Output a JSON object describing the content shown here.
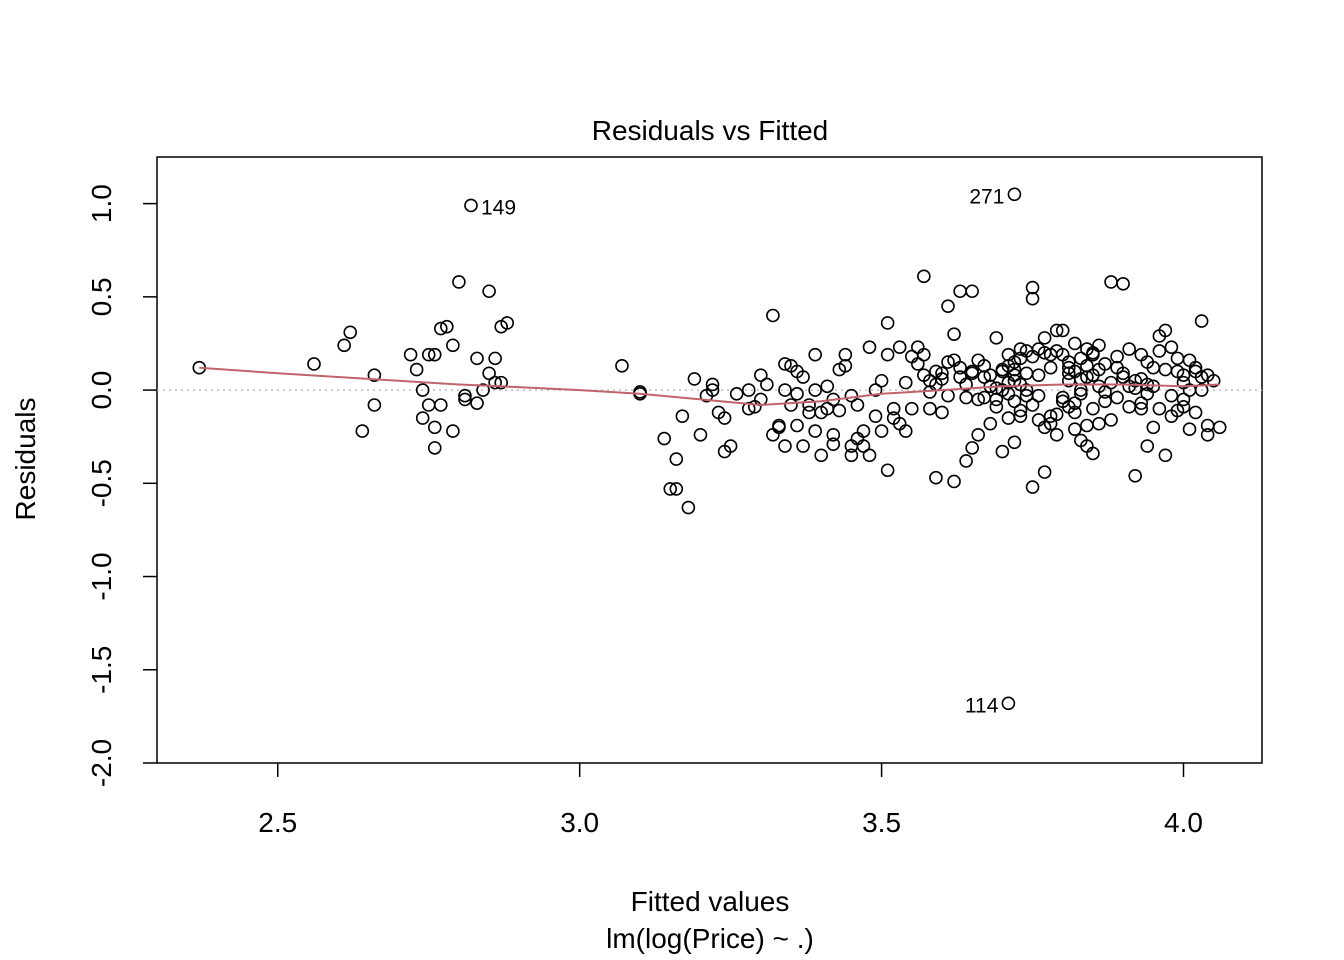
{
  "chart_data": {
    "type": "scatter",
    "title": "Residuals vs Fitted",
    "xlabel": "Fitted values",
    "subtitle": "lm(log(Price) ~ .)",
    "ylabel": "Residuals",
    "xlim": [
      2.3,
      4.13
    ],
    "ylim": [
      -2.0,
      1.25
    ],
    "x_ticks": [
      2.5,
      3.0,
      3.5,
      4.0
    ],
    "x_tick_labels": [
      "2.5",
      "3.0",
      "3.5",
      "4.0"
    ],
    "y_ticks": [
      -2.0,
      -1.5,
      -1.0,
      -0.5,
      0.0,
      0.5,
      1.0
    ],
    "y_tick_labels": [
      "-2.0",
      "-1.5",
      "-1.0",
      "-0.5",
      "0.0",
      "0.5",
      "1.0"
    ],
    "reference_line": {
      "y": 0,
      "style": "dotted",
      "color": "#BEBEBE"
    },
    "smooth_color": "#C0636B",
    "point_color": "#000000",
    "smooth": {
      "x": [
        2.37,
        2.5,
        2.6,
        2.7,
        2.8,
        2.87,
        3.0,
        3.1,
        3.2,
        3.3,
        3.4,
        3.5,
        3.6,
        3.7,
        3.8,
        3.9,
        4.0,
        4.06
      ],
      "y": [
        0.12,
        0.09,
        0.07,
        0.05,
        0.03,
        0.02,
        0.0,
        -0.02,
        -0.05,
        -0.08,
        -0.06,
        -0.02,
        0.0,
        0.02,
        0.03,
        0.03,
        0.02,
        0.03
      ]
    },
    "labeled_points": [
      {
        "x": 2.82,
        "y": 0.99,
        "label": "149",
        "side": "right"
      },
      {
        "x": 3.72,
        "y": 1.05,
        "label": "271",
        "side": "left"
      },
      {
        "x": 3.71,
        "y": -1.68,
        "label": "114",
        "side": "left"
      }
    ],
    "points": [
      [
        2.37,
        0.12
      ],
      [
        2.56,
        0.14
      ],
      [
        2.61,
        0.24
      ],
      [
        2.62,
        0.31
      ],
      [
        2.64,
        -0.22
      ],
      [
        2.66,
        0.08
      ],
      [
        2.66,
        -0.08
      ],
      [
        2.72,
        0.19
      ],
      [
        2.73,
        0.11
      ],
      [
        2.74,
        -0.15
      ],
      [
        2.74,
        0.0
      ],
      [
        2.75,
        0.19
      ],
      [
        2.75,
        -0.08
      ],
      [
        2.76,
        0.19
      ],
      [
        2.76,
        -0.2
      ],
      [
        2.76,
        -0.31
      ],
      [
        2.77,
        -0.08
      ],
      [
        2.77,
        0.33
      ],
      [
        2.78,
        0.34
      ],
      [
        2.79,
        0.24
      ],
      [
        2.79,
        -0.22
      ],
      [
        2.8,
        0.58
      ],
      [
        2.81,
        -0.05
      ],
      [
        2.81,
        -0.03
      ],
      [
        2.83,
        -0.07
      ],
      [
        2.83,
        0.17
      ],
      [
        2.84,
        0.0
      ],
      [
        2.85,
        0.53
      ],
      [
        2.85,
        0.09
      ],
      [
        2.86,
        0.17
      ],
      [
        2.86,
        0.04
      ],
      [
        2.87,
        0.34
      ],
      [
        2.87,
        0.04
      ],
      [
        2.88,
        0.36
      ],
      [
        3.07,
        0.13
      ],
      [
        3.1,
        -0.01
      ],
      [
        3.1,
        -0.02
      ],
      [
        3.14,
        -0.26
      ],
      [
        3.15,
        -0.53
      ],
      [
        3.16,
        -0.37
      ],
      [
        3.16,
        -0.53
      ],
      [
        3.17,
        -0.14
      ],
      [
        3.18,
        -0.63
      ],
      [
        3.19,
        0.06
      ],
      [
        3.2,
        -0.24
      ],
      [
        3.21,
        -0.03
      ],
      [
        3.22,
        0.03
      ],
      [
        3.22,
        0.0
      ],
      [
        3.23,
        -0.12
      ],
      [
        3.24,
        -0.33
      ],
      [
        3.24,
        -0.15
      ],
      [
        3.25,
        -0.3
      ],
      [
        3.26,
        -0.02
      ],
      [
        3.28,
        0.0
      ],
      [
        3.28,
        -0.1
      ],
      [
        3.29,
        -0.09
      ],
      [
        3.3,
        0.08
      ],
      [
        3.3,
        -0.05
      ],
      [
        3.31,
        0.03
      ],
      [
        3.32,
        0.4
      ],
      [
        3.32,
        -0.24
      ],
      [
        3.33,
        -0.19
      ],
      [
        3.33,
        -0.2
      ],
      [
        3.34,
        0.14
      ],
      [
        3.34,
        -0.3
      ],
      [
        3.34,
        0.0
      ],
      [
        3.35,
        0.13
      ],
      [
        3.35,
        -0.08
      ],
      [
        3.36,
        0.1
      ],
      [
        3.36,
        -0.19
      ],
      [
        3.36,
        -0.02
      ],
      [
        3.37,
        -0.3
      ],
      [
        3.37,
        0.07
      ],
      [
        3.38,
        -0.12
      ],
      [
        3.38,
        -0.08
      ],
      [
        3.39,
        0.19
      ],
      [
        3.39,
        -0.22
      ],
      [
        3.39,
        0.0
      ],
      [
        3.4,
        -0.35
      ],
      [
        3.4,
        -0.12
      ],
      [
        3.41,
        -0.1
      ],
      [
        3.41,
        0.02
      ],
      [
        3.42,
        -0.24
      ],
      [
        3.42,
        -0.29
      ],
      [
        3.42,
        -0.05
      ],
      [
        3.43,
        0.11
      ],
      [
        3.43,
        -0.11
      ],
      [
        3.44,
        0.13
      ],
      [
        3.44,
        0.19
      ],
      [
        3.45,
        -0.35
      ],
      [
        3.45,
        -0.3
      ],
      [
        3.45,
        -0.03
      ],
      [
        3.46,
        -0.26
      ],
      [
        3.46,
        -0.08
      ],
      [
        3.47,
        -0.3
      ],
      [
        3.47,
        -0.22
      ],
      [
        3.48,
        0.23
      ],
      [
        3.48,
        -0.35
      ],
      [
        3.49,
        -0.14
      ],
      [
        3.49,
        0.0
      ],
      [
        3.5,
        -0.22
      ],
      [
        3.5,
        0.05
      ],
      [
        3.51,
        -0.43
      ],
      [
        3.51,
        0.36
      ],
      [
        3.51,
        0.19
      ],
      [
        3.52,
        -0.15
      ],
      [
        3.52,
        -0.1
      ],
      [
        3.53,
        -0.18
      ],
      [
        3.53,
        0.23
      ],
      [
        3.54,
        0.04
      ],
      [
        3.54,
        -0.22
      ],
      [
        3.55,
        0.18
      ],
      [
        3.55,
        -0.1
      ],
      [
        3.56,
        0.23
      ],
      [
        3.56,
        0.14
      ],
      [
        3.57,
        0.61
      ],
      [
        3.57,
        0.19
      ],
      [
        3.58,
        -0.1
      ],
      [
        3.58,
        0.05
      ],
      [
        3.59,
        -0.47
      ],
      [
        3.59,
        0.03
      ],
      [
        3.6,
        0.06
      ],
      [
        3.6,
        -0.12
      ],
      [
        3.61,
        0.45
      ],
      [
        3.61,
        0.15
      ],
      [
        3.62,
        0.3
      ],
      [
        3.62,
        -0.49
      ],
      [
        3.63,
        0.53
      ],
      [
        3.63,
        0.12
      ],
      [
        3.64,
        0.03
      ],
      [
        3.64,
        -0.38
      ],
      [
        3.65,
        0.53
      ],
      [
        3.65,
        -0.31
      ],
      [
        3.65,
        0.09
      ],
      [
        3.66,
        -0.24
      ],
      [
        3.66,
        0.16
      ],
      [
        3.67,
        -0.04
      ],
      [
        3.67,
        0.13
      ],
      [
        3.68,
        -0.18
      ],
      [
        3.68,
        0.08
      ],
      [
        3.69,
        0.28
      ],
      [
        3.69,
        -0.05
      ],
      [
        3.7,
        0.11
      ],
      [
        3.7,
        0.0
      ],
      [
        3.71,
        -0.15
      ],
      [
        3.71,
        0.19
      ],
      [
        3.72,
        0.05
      ],
      [
        3.72,
        -0.28
      ],
      [
        3.72,
        0.11
      ],
      [
        3.73,
        -0.14
      ],
      [
        3.73,
        0.22
      ],
      [
        3.74,
        0.0
      ],
      [
        3.74,
        0.09
      ],
      [
        3.75,
        0.49
      ],
      [
        3.75,
        -0.52
      ],
      [
        3.75,
        0.55
      ],
      [
        3.76,
        -0.03
      ],
      [
        3.76,
        0.08
      ],
      [
        3.77,
        0.28
      ],
      [
        3.77,
        -0.44
      ],
      [
        3.78,
        0.12
      ],
      [
        3.78,
        -0.14
      ],
      [
        3.79,
        0.32
      ],
      [
        3.79,
        -0.24
      ],
      [
        3.8,
        0.32
      ],
      [
        3.8,
        -0.06
      ],
      [
        3.81,
        0.05
      ],
      [
        3.81,
        0.09
      ],
      [
        3.82,
        -0.12
      ],
      [
        3.82,
        -0.21
      ],
      [
        3.83,
        0.0
      ],
      [
        3.83,
        0.17
      ],
      [
        3.84,
        0.13
      ],
      [
        3.84,
        -0.19
      ],
      [
        3.85,
        0.08
      ],
      [
        3.85,
        -0.34
      ],
      [
        3.85,
        0.19
      ],
      [
        3.86,
        -0.18
      ],
      [
        3.86,
        0.11
      ],
      [
        3.87,
        -0.01
      ],
      [
        3.87,
        0.14
      ],
      [
        3.88,
        0.58
      ],
      [
        3.88,
        -0.16
      ],
      [
        3.89,
        0.18
      ],
      [
        3.89,
        -0.04
      ],
      [
        3.9,
        0.57
      ],
      [
        3.9,
        0.07
      ],
      [
        3.91,
        -0.09
      ],
      [
        3.91,
        0.22
      ],
      [
        3.92,
        -0.46
      ],
      [
        3.92,
        0.05
      ],
      [
        3.93,
        -0.07
      ],
      [
        3.93,
        0.19
      ],
      [
        3.94,
        -0.3
      ],
      [
        3.94,
        0.15
      ],
      [
        3.95,
        -0.2
      ],
      [
        3.95,
        0.02
      ],
      [
        3.96,
        -0.1
      ],
      [
        3.96,
        0.21
      ],
      [
        3.97,
        -0.35
      ],
      [
        3.97,
        0.11
      ],
      [
        3.98,
        -0.03
      ],
      [
        3.98,
        0.23
      ],
      [
        3.99,
        -0.11
      ],
      [
        3.99,
        0.1
      ],
      [
        4.0,
        -0.05
      ],
      [
        4.0,
        0.04
      ],
      [
        4.01,
        -0.21
      ],
      [
        4.01,
        0.16
      ],
      [
        4.02,
        0.12
      ],
      [
        4.02,
        -0.12
      ],
      [
        4.03,
        0.37
      ],
      [
        4.03,
        0.0
      ],
      [
        4.04,
        -0.19
      ],
      [
        4.04,
        0.08
      ],
      [
        3.96,
        0.29
      ],
      [
        3.97,
        0.32
      ],
      [
        3.98,
        -0.14
      ],
      [
        3.99,
        0.17
      ],
      [
        4.0,
        -0.09
      ],
      [
        3.94,
        0.03
      ],
      [
        3.95,
        0.12
      ],
      [
        3.93,
        -0.1
      ],
      [
        4.03,
        0.07
      ],
      [
        4.04,
        -0.24
      ],
      [
        4.05,
        0.05
      ],
      [
        4.06,
        -0.2
      ],
      [
        4.02,
        0.1
      ],
      [
        4.01,
        0.0
      ],
      [
        4.0,
        0.08
      ],
      [
        3.83,
        -0.27
      ],
      [
        3.84,
        -0.3
      ],
      [
        3.82,
        0.25
      ],
      [
        3.8,
        0.19
      ],
      [
        3.81,
        0.15
      ],
      [
        3.79,
        0.21
      ],
      [
        3.78,
        0.19
      ],
      [
        3.77,
        0.2
      ],
      [
        3.76,
        0.22
      ],
      [
        3.75,
        0.18
      ],
      [
        3.74,
        0.21
      ],
      [
        3.73,
        0.17
      ],
      [
        3.72,
        0.15
      ],
      [
        3.71,
        0.13
      ],
      [
        3.7,
        -0.33
      ],
      [
        3.69,
        0.01
      ],
      [
        3.68,
        0.02
      ],
      [
        3.67,
        0.07
      ],
      [
        3.66,
        -0.05
      ],
      [
        3.65,
        0.1
      ],
      [
        3.64,
        -0.04
      ],
      [
        3.63,
        0.07
      ],
      [
        3.62,
        0.16
      ],
      [
        3.61,
        -0.03
      ],
      [
        3.6,
        0.09
      ],
      [
        3.59,
        0.1
      ],
      [
        3.58,
        -0.01
      ],
      [
        3.57,
        0.08
      ],
      [
        3.86,
        0.02
      ],
      [
        3.87,
        -0.06
      ],
      [
        3.88,
        0.04
      ],
      [
        3.85,
        -0.1
      ],
      [
        3.84,
        0.07
      ],
      [
        3.83,
        -0.02
      ],
      [
        3.82,
        -0.07
      ],
      [
        3.81,
        -0.09
      ],
      [
        3.8,
        -0.04
      ],
      [
        3.79,
        -0.13
      ],
      [
        3.78,
        -0.18
      ],
      [
        3.77,
        -0.2
      ],
      [
        3.76,
        -0.16
      ],
      [
        3.75,
        -0.08
      ],
      [
        3.74,
        -0.03
      ],
      [
        3.73,
        -0.11
      ],
      [
        3.72,
        -0.06
      ],
      [
        3.71,
        0.04
      ],
      [
        3.9,
        0.09
      ],
      [
        3.91,
        0.02
      ],
      [
        3.89,
        0.12
      ],
      [
        3.86,
        0.24
      ],
      [
        3.85,
        0.2
      ],
      [
        3.84,
        0.22
      ],
      [
        3.83,
        0.06
      ],
      [
        3.82,
        0.1
      ],
      [
        3.81,
        0.12
      ],
      [
        3.92,
        0.01
      ],
      [
        3.93,
        0.06
      ],
      [
        3.94,
        -0.02
      ],
      [
        3.69,
        -0.09
      ],
      [
        3.7,
        0.1
      ],
      [
        3.71,
        -0.02
      ],
      [
        3.72,
        0.08
      ],
      [
        3.73,
        0.03
      ]
    ]
  }
}
